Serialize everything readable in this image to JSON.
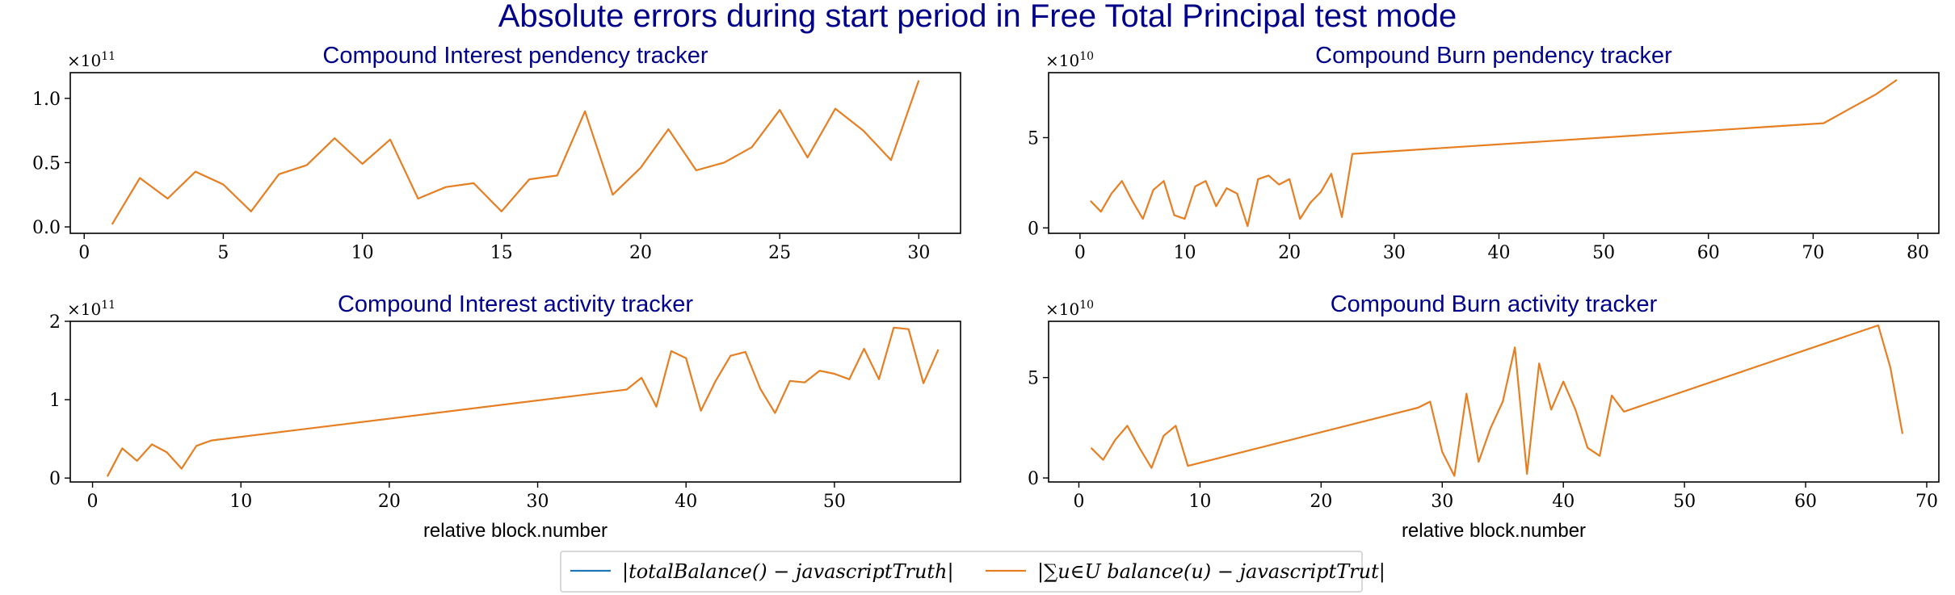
{
  "suptitle": "Absolute errors during start period in Free Total Principal test mode",
  "colors": {
    "title": "#00008b",
    "series_blue": "#1f77b4",
    "series_orange": "#e67e22"
  },
  "legend": {
    "items": [
      {
        "label": "|totalBalance() − javascriptTruth|",
        "color": "#1f77b4"
      },
      {
        "label": "|∑u∈U balance(u) − javascriptTrut|",
        "color": "#e67e22"
      }
    ]
  },
  "chart_data": [
    {
      "type": "line",
      "title": "Compound Interest pendency tracker",
      "xlabel": "",
      "ylabel": "",
      "y_offset_base": "×10",
      "y_offset_exp": "11",
      "xlim": [
        -0.5,
        31.5
      ],
      "ylim": [
        -0.05,
        1.2
      ],
      "xticks": [
        0,
        5,
        10,
        15,
        20,
        25,
        30
      ],
      "xtick_labels": [
        "0",
        "5",
        "10",
        "15",
        "20",
        "25",
        "30"
      ],
      "yticks": [
        0.0,
        0.5,
        1.0
      ],
      "ytick_labels": [
        "0.0",
        "0.5",
        "1.0"
      ],
      "grid": false,
      "series": [
        {
          "color": "#e67e22",
          "x": [
            1,
            2,
            3,
            4,
            5,
            6,
            7,
            8,
            9,
            10,
            11,
            12,
            13,
            14,
            15,
            16,
            17,
            18,
            19,
            20,
            21,
            22,
            23,
            24,
            25,
            26,
            27,
            28,
            29,
            30
          ],
          "y": [
            0.02,
            0.38,
            0.22,
            0.43,
            0.33,
            0.12,
            0.41,
            0.48,
            0.69,
            0.49,
            0.68,
            0.22,
            0.31,
            0.34,
            0.12,
            0.37,
            0.4,
            0.9,
            0.25,
            0.46,
            0.76,
            0.44,
            0.5,
            0.62,
            0.91,
            0.54,
            0.92,
            0.75,
            0.52,
            1.14
          ]
        }
      ]
    },
    {
      "type": "line",
      "title": "Compound Burn pendency tracker",
      "xlabel": "",
      "ylabel": "",
      "y_offset_base": "×10",
      "y_offset_exp": "10",
      "xlim": [
        -3,
        82
      ],
      "ylim": [
        -0.3,
        8.6
      ],
      "xticks": [
        0,
        10,
        20,
        30,
        40,
        50,
        60,
        70,
        80
      ],
      "xtick_labels": [
        "0",
        "10",
        "20",
        "30",
        "40",
        "50",
        "60",
        "70",
        "80"
      ],
      "yticks": [
        0,
        5
      ],
      "ytick_labels": [
        "0",
        "5"
      ],
      "grid": false,
      "series": [
        {
          "color": "#e67e22",
          "x": [
            1,
            2,
            3,
            4,
            5,
            6,
            7,
            8,
            9,
            10,
            11,
            12,
            13,
            14,
            15,
            16,
            17,
            18,
            19,
            20,
            21,
            22,
            23,
            24,
            25,
            26,
            71,
            76,
            78
          ],
          "y": [
            1.5,
            0.9,
            1.9,
            2.6,
            1.5,
            0.5,
            2.1,
            2.6,
            0.7,
            0.5,
            2.3,
            2.6,
            1.2,
            2.2,
            1.9,
            0.1,
            2.7,
            2.9,
            2.4,
            2.7,
            0.5,
            1.4,
            2.0,
            3.0,
            0.6,
            4.1,
            5.8,
            7.4,
            8.2
          ]
        }
      ]
    },
    {
      "type": "line",
      "title": "Compound Interest activity tracker",
      "xlabel": "relative block.number",
      "ylabel": "",
      "y_offset_base": "×10",
      "y_offset_exp": "11",
      "xlim": [
        -1.5,
        58.5
      ],
      "ylim": [
        -0.05,
        2.0
      ],
      "xticks": [
        0,
        10,
        20,
        30,
        40,
        50
      ],
      "xtick_labels": [
        "0",
        "10",
        "20",
        "30",
        "40",
        "50"
      ],
      "yticks": [
        0,
        1,
        2
      ],
      "ytick_labels": [
        "0",
        "1",
        "2"
      ],
      "grid": false,
      "series": [
        {
          "color": "#e67e22",
          "x": [
            1,
            2,
            3,
            4,
            5,
            6,
            7,
            8,
            36,
            37,
            38,
            39,
            40,
            41,
            42,
            43,
            44,
            45,
            46,
            47,
            48,
            49,
            50,
            51,
            52,
            53,
            54,
            55,
            56,
            57
          ],
          "y": [
            0.02,
            0.38,
            0.22,
            0.43,
            0.33,
            0.12,
            0.41,
            0.48,
            1.13,
            1.28,
            0.91,
            1.62,
            1.53,
            0.86,
            1.24,
            1.56,
            1.61,
            1.14,
            0.83,
            1.24,
            1.22,
            1.37,
            1.33,
            1.26,
            1.65,
            1.26,
            1.92,
            1.9,
            1.21,
            1.64
          ]
        }
      ]
    },
    {
      "type": "line",
      "title": "Compound Burn activity tracker",
      "xlabel": "relative block.number",
      "ylabel": "",
      "y_offset_base": "×10",
      "y_offset_exp": "10",
      "xlim": [
        -2.5,
        71
      ],
      "ylim": [
        -0.2,
        7.8
      ],
      "xticks": [
        0,
        10,
        20,
        30,
        40,
        50,
        60,
        70
      ],
      "xtick_labels": [
        "0",
        "10",
        "20",
        "30",
        "40",
        "50",
        "60",
        "70"
      ],
      "yticks": [
        0,
        5
      ],
      "ytick_labels": [
        "0",
        "5"
      ],
      "grid": false,
      "series": [
        {
          "color": "#e67e22",
          "x": [
            1,
            2,
            3,
            4,
            5,
            6,
            7,
            8,
            9,
            28,
            29,
            30,
            31,
            32,
            33,
            34,
            35,
            36,
            37,
            38,
            39,
            40,
            41,
            42,
            43,
            44,
            45,
            66,
            67,
            68
          ],
          "y": [
            1.5,
            0.9,
            1.9,
            2.6,
            1.5,
            0.5,
            2.1,
            2.6,
            0.6,
            3.5,
            3.8,
            1.3,
            0.1,
            4.2,
            0.8,
            2.5,
            3.8,
            6.5,
            0.2,
            5.7,
            3.4,
            4.8,
            3.4,
            1.5,
            1.1,
            4.1,
            3.3,
            7.6,
            5.5,
            2.2
          ]
        }
      ]
    }
  ]
}
